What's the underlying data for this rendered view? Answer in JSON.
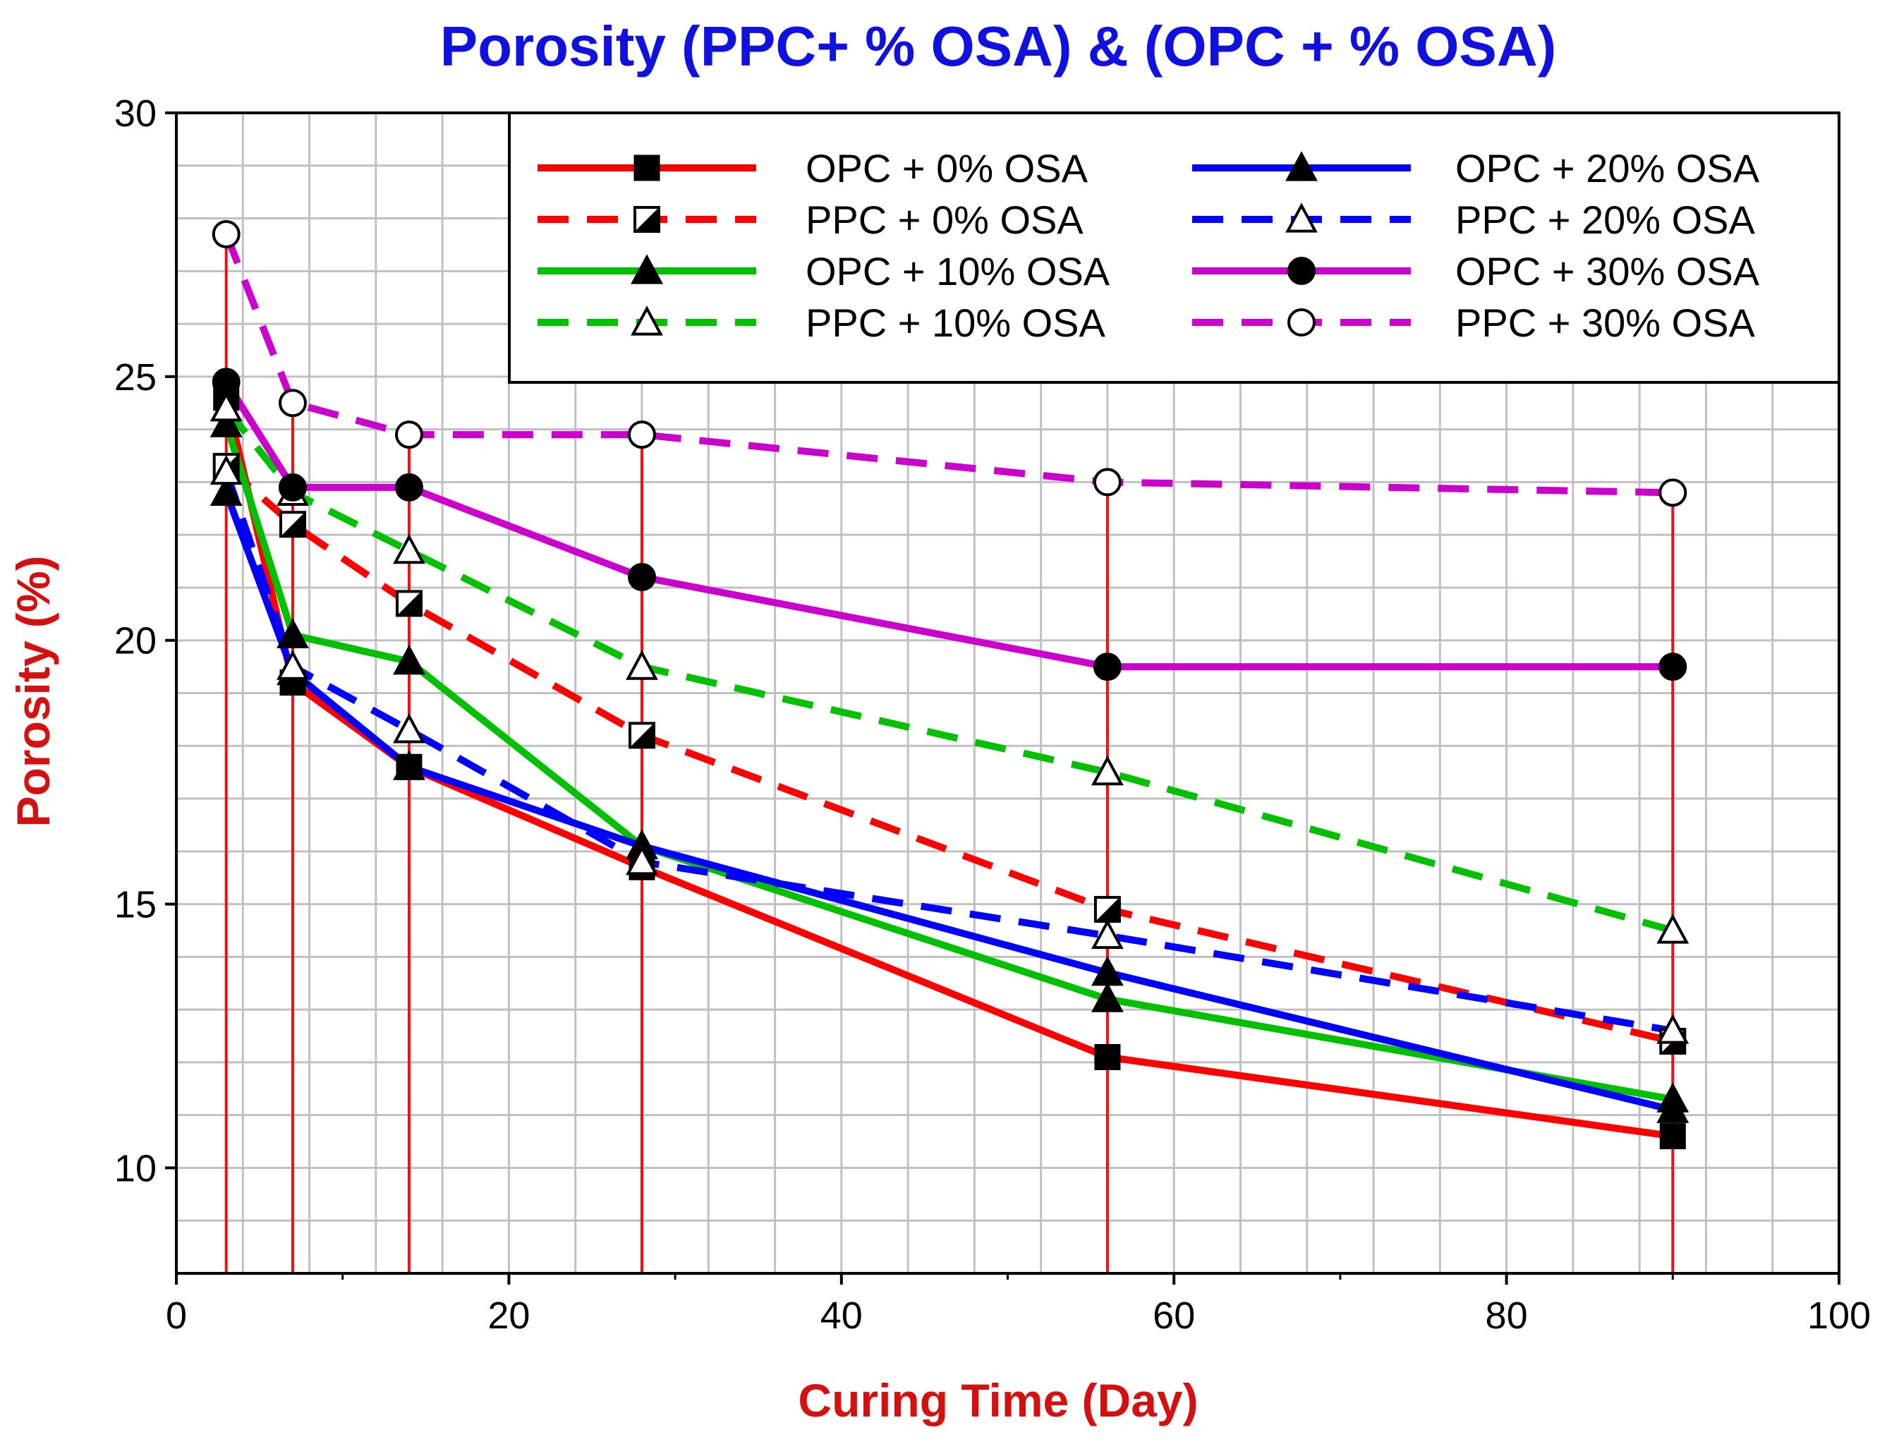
{
  "chart_data": {
    "type": "line",
    "title": "Porosity (PPC+ % OSA) & (OPC + % OSA)",
    "title_color": "#1010e0",
    "xlabel": "Curing Time (Day)",
    "ylabel": "Porosity (%)",
    "axis_label_color": "#d41010",
    "xlim": [
      0,
      100
    ],
    "ylim": [
      8,
      30
    ],
    "x_ticks": [
      "0",
      "20",
      "40",
      "60",
      "80",
      "100"
    ],
    "y_ticks": [
      "10",
      "15",
      "20",
      "25",
      "30"
    ],
    "grid": true,
    "grid_color": "#c0c0c0",
    "drop_lines": true,
    "drop_line_color": "#ee1111",
    "legend_position": "top-right",
    "series": [
      {
        "name": "OPC + 0% OSA",
        "color": "#ff0000",
        "dash": "solid",
        "marker": "square-filled",
        "x": [
          3,
          7,
          14,
          28,
          56,
          90
        ],
        "y": [
          24.6,
          19.2,
          17.6,
          15.7,
          12.1,
          10.6
        ]
      },
      {
        "name": "PPC + 0% OSA",
        "color": "#ff0000",
        "dash": "dashed",
        "marker": "square-half",
        "x": [
          3,
          7,
          14,
          28,
          56,
          90
        ],
        "y": [
          23.3,
          22.2,
          20.7,
          18.2,
          14.9,
          12.4
        ]
      },
      {
        "name": "OPC + 10% OSA",
        "color": "#00c000",
        "dash": "solid",
        "marker": "triangle-filled",
        "x": [
          3,
          7,
          14,
          28,
          56,
          90
        ],
        "y": [
          24.1,
          20.1,
          19.6,
          16.1,
          13.2,
          11.3
        ]
      },
      {
        "name": "PPC + 10% OSA",
        "color": "#00c000",
        "dash": "dashed",
        "marker": "triangle-open",
        "x": [
          3,
          7,
          14,
          28,
          56,
          90
        ],
        "y": [
          24.4,
          22.8,
          21.7,
          19.5,
          17.5,
          14.5
        ]
      },
      {
        "name": "OPC + 20% OSA",
        "color": "#0000ff",
        "dash": "solid",
        "marker": "triangle-filled",
        "x": [
          3,
          7,
          14,
          28,
          56,
          90
        ],
        "y": [
          22.8,
          19.4,
          17.6,
          16.1,
          13.7,
          11.1
        ]
      },
      {
        "name": "PPC + 20% OSA",
        "color": "#0000ff",
        "dash": "dashed",
        "marker": "triangle-open",
        "x": [
          3,
          7,
          14,
          28,
          56,
          90
        ],
        "y": [
          23.2,
          19.5,
          18.3,
          15.8,
          14.4,
          12.6
        ]
      },
      {
        "name": "OPC + 30% OSA",
        "color": "#cc00cc",
        "dash": "solid",
        "marker": "circle-filled",
        "x": [
          3,
          7,
          14,
          28,
          56,
          90
        ],
        "y": [
          24.9,
          22.9,
          22.9,
          21.2,
          19.5,
          19.5
        ]
      },
      {
        "name": "PPC + 30% OSA",
        "color": "#cc00cc",
        "dash": "dashed",
        "marker": "circle-open",
        "x": [
          3,
          7,
          14,
          28,
          56,
          90
        ],
        "y": [
          27.7,
          24.5,
          23.9,
          23.9,
          23.0,
          22.8
        ]
      }
    ]
  }
}
